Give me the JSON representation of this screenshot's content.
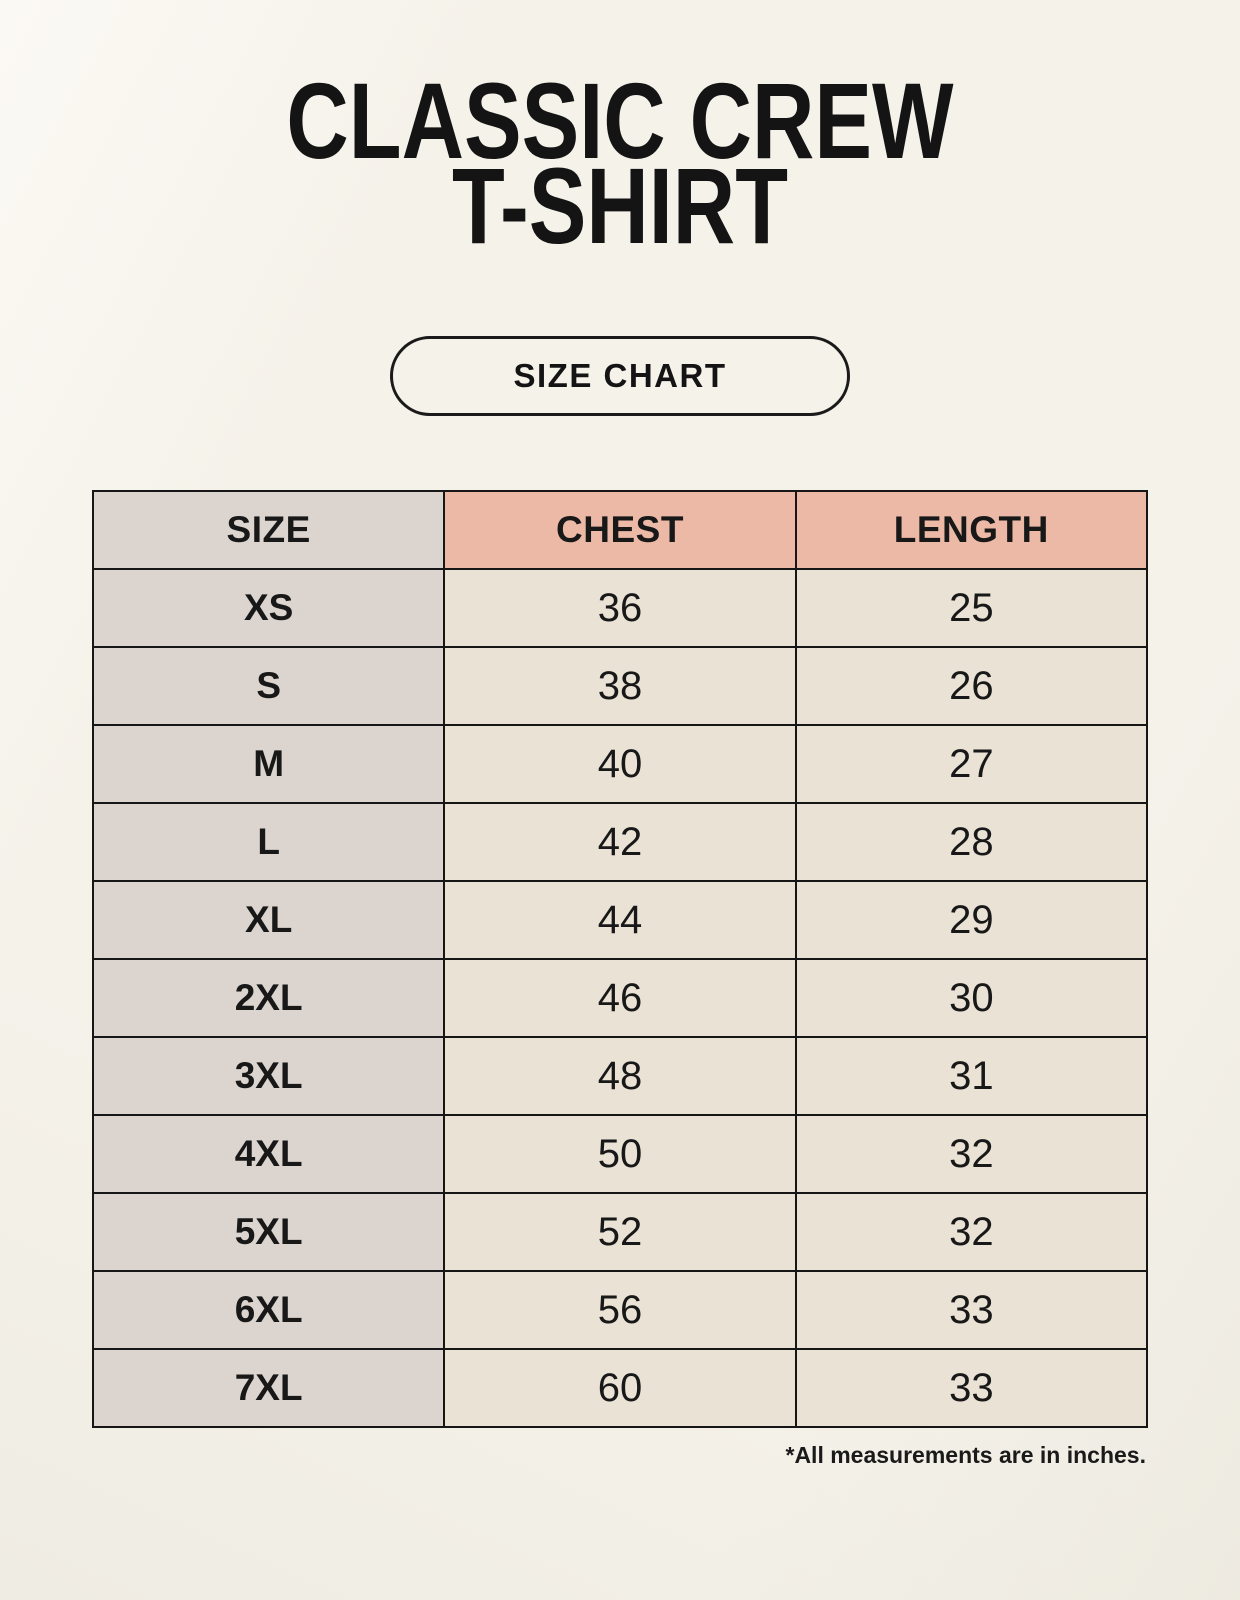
{
  "page": {
    "title_line1": "CLASSIC CREW",
    "title_line2": "T-SHIRT",
    "size_chart_button": "SIZE CHART",
    "footnote": "*All measurements are in inches."
  },
  "table": {
    "columns": [
      "SIZE",
      "CHEST",
      "LENGTH"
    ],
    "rows": [
      {
        "size": "XS",
        "chest": "36",
        "length": "25"
      },
      {
        "size": "S",
        "chest": "38",
        "length": "26"
      },
      {
        "size": "M",
        "chest": "40",
        "length": "27"
      },
      {
        "size": "L",
        "chest": "42",
        "length": "28"
      },
      {
        "size": "XL",
        "chest": "44",
        "length": "29"
      },
      {
        "size": "2XL",
        "chest": "46",
        "length": "30"
      },
      {
        "size": "3XL",
        "chest": "48",
        "length": "31"
      },
      {
        "size": "4XL",
        "chest": "50",
        "length": "32"
      },
      {
        "size": "5XL",
        "chest": "52",
        "length": "32"
      },
      {
        "size": "6XL",
        "chest": "56",
        "length": "33"
      },
      {
        "size": "7XL",
        "chest": "60",
        "length": "33"
      }
    ]
  },
  "colors": {
    "background": "#f5f2ea",
    "header_accent_salmon": "#edb9a7",
    "size_column_taupe": "#dcd4ce",
    "value_cell_cream": "#e9e2d5",
    "border_black": "#161616",
    "text_black": "#141414"
  }
}
